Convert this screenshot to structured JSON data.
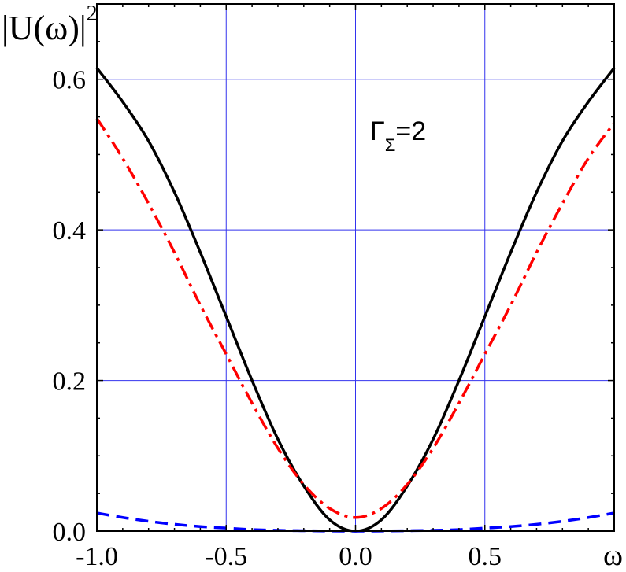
{
  "chart_data": {
    "type": "line",
    "ylabel_main": "|U(ω)|",
    "ylabel_sup": "2",
    "xlabel": "ω",
    "annotation": {
      "main": "Γ",
      "sub": "Σ",
      "rest": "=2"
    },
    "xlim": [
      -1.0,
      1.0
    ],
    "ylim": [
      0.0,
      0.7
    ],
    "grid": true,
    "x_ticks": [
      {
        "value": -1.0,
        "label": "-1.0"
      },
      {
        "value": -0.5,
        "label": "-0.5"
      },
      {
        "value": 0.0,
        "label": "0.0"
      },
      {
        "value": 0.5,
        "label": "0.5"
      }
    ],
    "y_ticks": [
      {
        "value": 0.0,
        "label": "0.0"
      },
      {
        "value": 0.2,
        "label": "0.2"
      },
      {
        "value": 0.4,
        "label": "0.4"
      },
      {
        "value": 0.6,
        "label": "0.6"
      }
    ],
    "series": [
      {
        "style": "solid",
        "color": "#000000",
        "x": [
          -1.0,
          -0.9,
          -0.8,
          -0.7,
          -0.6,
          -0.5,
          -0.4,
          -0.3,
          -0.2,
          -0.1,
          0.0,
          0.1,
          0.2,
          0.3,
          0.4,
          0.5,
          0.6,
          0.7,
          0.8,
          0.9,
          1.0
        ],
        "y": [
          0.615,
          0.57,
          0.518,
          0.45,
          0.37,
          0.285,
          0.2,
          0.122,
          0.06,
          0.015,
          0.0,
          0.015,
          0.06,
          0.122,
          0.2,
          0.285,
          0.37,
          0.45,
          0.518,
          0.57,
          0.615
        ]
      },
      {
        "style": "dash-dot",
        "color": "#ff0000",
        "x": [
          -1.0,
          -0.9,
          -0.8,
          -0.7,
          -0.6,
          -0.5,
          -0.4,
          -0.3,
          -0.2,
          -0.1,
          0.0,
          0.1,
          0.2,
          0.3,
          0.4,
          0.5,
          0.6,
          0.7,
          0.8,
          0.9,
          1.0
        ],
        "y": [
          0.548,
          0.495,
          0.435,
          0.37,
          0.3,
          0.235,
          0.17,
          0.11,
          0.062,
          0.03,
          0.018,
          0.03,
          0.062,
          0.11,
          0.17,
          0.235,
          0.3,
          0.37,
          0.435,
          0.495,
          0.542
        ]
      },
      {
        "style": "dashed",
        "color": "#0000ff",
        "x": [
          -1.0,
          -0.9,
          -0.8,
          -0.7,
          -0.6,
          -0.5,
          -0.4,
          -0.3,
          -0.2,
          -0.1,
          0.0,
          0.1,
          0.2,
          0.3,
          0.4,
          0.5,
          0.6,
          0.7,
          0.8,
          0.9,
          1.0
        ],
        "y": [
          0.024,
          0.018,
          0.013,
          0.009,
          0.006,
          0.004,
          0.002,
          0.001,
          0.0005,
          0.0001,
          0.0,
          0.0001,
          0.0005,
          0.001,
          0.002,
          0.004,
          0.006,
          0.009,
          0.013,
          0.018,
          0.024
        ]
      }
    ]
  }
}
